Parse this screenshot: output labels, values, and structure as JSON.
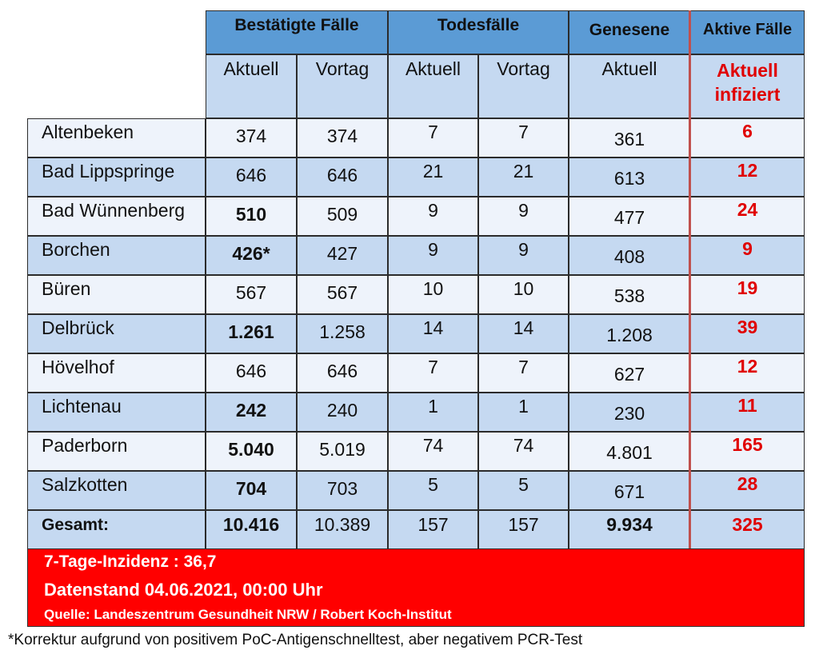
{
  "header": {
    "groups": {
      "confirmed": "Bestätigte Fälle",
      "deaths": "Todesfälle",
      "recovered": "Genesene",
      "active": "Aktive Fälle"
    },
    "sub": {
      "c_current": "Aktuell",
      "c_prev": "Vortag",
      "d_current": "Aktuell",
      "d_prev": "Vortag",
      "r_current": "Aktuell",
      "a_line1": "Aktuell",
      "a_line2": "infiziert"
    }
  },
  "rows": [
    {
      "name": "Altenbeken",
      "c_cur": "374",
      "c_prev": "374",
      "d_cur": "7",
      "d_prev": "7",
      "rec": "361",
      "active": "6"
    },
    {
      "name": "Bad Lippspringe",
      "c_cur": "646",
      "c_prev": "646",
      "d_cur": "21",
      "d_prev": "21",
      "rec": "613",
      "active": "12"
    },
    {
      "name": "Bad Wünnenberg",
      "c_cur": "510",
      "c_prev": "509",
      "d_cur": "9",
      "d_prev": "9",
      "rec": "477",
      "active": "24"
    },
    {
      "name": "Borchen",
      "c_cur": "426*",
      "c_prev": "427",
      "d_cur": "9",
      "d_prev": "9",
      "rec": "408",
      "active": "9"
    },
    {
      "name": "Büren",
      "c_cur": "567",
      "c_prev": "567",
      "d_cur": "10",
      "d_prev": "10",
      "rec": "538",
      "active": "19"
    },
    {
      "name": "Delbrück",
      "c_cur": "1.261",
      "c_prev": "1.258",
      "d_cur": "14",
      "d_prev": "14",
      "rec": "1.208",
      "active": "39"
    },
    {
      "name": "Hövelhof",
      "c_cur": "646",
      "c_prev": "646",
      "d_cur": "7",
      "d_prev": "7",
      "rec": "627",
      "active": "12"
    },
    {
      "name": "Lichtenau",
      "c_cur": "242",
      "c_prev": "240",
      "d_cur": "1",
      "d_prev": "1",
      "rec": "230",
      "active": "11"
    },
    {
      "name": "Paderborn",
      "c_cur": "5.040",
      "c_prev": "5.019",
      "d_cur": "74",
      "d_prev": "74",
      "rec": "4.801",
      "active": "165"
    },
    {
      "name": "Salzkotten",
      "c_cur": "704",
      "c_prev": "703",
      "d_cur": "5",
      "d_prev": "5",
      "rec": "671",
      "active": "28"
    }
  ],
  "total": {
    "name": "Gesamt:",
    "c_cur": "10.416",
    "c_prev": "10.389",
    "d_cur": "157",
    "d_prev": "157",
    "rec": "9.934",
    "active": "325"
  },
  "banner": {
    "incidence": "7-Tage-Inzidenz : 36,7",
    "timestamp": "Datenstand 04.06.2021, 00:00 Uhr",
    "source": "Quelle: Landeszentrum Gesundheit NRW / Robert Koch-Institut"
  },
  "footnote": "*Korrektur aufgrund von positivem PoC-Antigenschnelltest, aber negativem PCR-Test",
  "colors": {
    "header_blue": "#5b9bd5",
    "light_blue": "#c5d9f1",
    "accent_red": "#ff0000",
    "active_text": "#e00000"
  }
}
